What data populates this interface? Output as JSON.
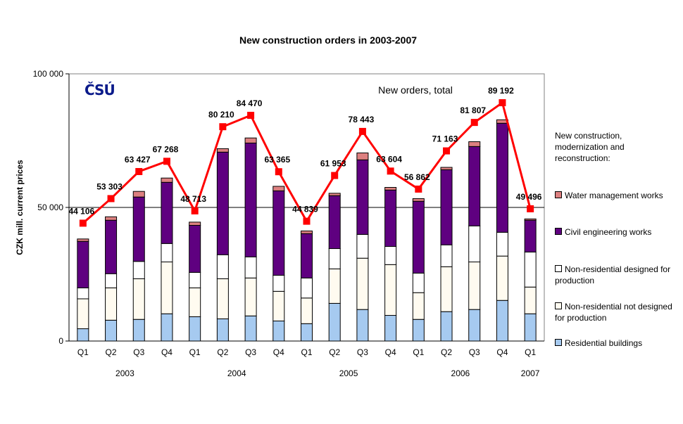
{
  "chart_data": {
    "type": "bar",
    "title": "New construction orders in 2003-2007",
    "ylabel": "CZK mill. current prices",
    "xlabel": "",
    "ylim": [
      0,
      100000
    ],
    "yticks": [
      "0",
      "50 000",
      "100 000"
    ],
    "ytick_values": [
      0,
      50000,
      100000
    ],
    "gridlines": [
      50000
    ],
    "categories": [
      "Q1",
      "Q2",
      "Q3",
      "Q4",
      "Q1",
      "Q2",
      "Q3",
      "Q4",
      "Q1",
      "Q2",
      "Q3",
      "Q4",
      "Q1",
      "Q2",
      "Q3",
      "Q4",
      "Q1"
    ],
    "years": [
      {
        "label": "2003",
        "from": 0,
        "to": 3
      },
      {
        "label": "2004",
        "from": 4,
        "to": 7
      },
      {
        "label": "2005",
        "from": 8,
        "to": 11
      },
      {
        "label": "2006",
        "from": 12,
        "to": 15
      },
      {
        "label": "2007",
        "from": 16,
        "to": 16
      }
    ],
    "legend_title": "New construction, modernization and reconstruction:",
    "legend_position": "right",
    "stacked": true,
    "series": [
      {
        "name": "Residential buildings",
        "color": "#a6caf0",
        "values": [
          4600,
          7800,
          8100,
          10200,
          9100,
          8300,
          9400,
          7500,
          6500,
          14100,
          11800,
          9600,
          8100,
          11000,
          11800,
          15200,
          10200
        ]
      },
      {
        "name": "Non-residential not designed for production",
        "color": "#fffbf0",
        "values": [
          11200,
          12100,
          15200,
          19400,
          10800,
          15000,
          14200,
          11100,
          9600,
          12900,
          19200,
          19000,
          10000,
          16800,
          17800,
          16600,
          10000
        ]
      },
      {
        "name": "Non-residential designed for production",
        "color": "#ffffff",
        "values": [
          4100,
          5300,
          6500,
          6900,
          5800,
          9000,
          7900,
          6000,
          7500,
          7600,
          8900,
          6800,
          7300,
          8200,
          13500,
          8900,
          13100
        ]
      },
      {
        "name": "Civil engineering works",
        "color": "#5f0080",
        "values": [
          17400,
          20000,
          24100,
          22900,
          17600,
          38400,
          42600,
          31600,
          16600,
          19800,
          27900,
          21100,
          26900,
          28100,
          29700,
          40800,
          11900
        ]
      },
      {
        "name": "Water management works",
        "color": "#dd8080",
        "values": [
          900,
          1300,
          2100,
          1600,
          1200,
          1300,
          1900,
          1700,
          1000,
          900,
          2600,
          1000,
          1000,
          900,
          1800,
          1300,
          500
        ]
      }
    ],
    "line": {
      "name": "New orders, total",
      "color": "#ff0000",
      "values": [
        44106,
        53303,
        63427,
        67268,
        48713,
        80210,
        84470,
        63365,
        44839,
        61953,
        78443,
        63604,
        56862,
        71163,
        81807,
        89192,
        49496
      ],
      "labels": [
        "44 106",
        "53 303",
        "63 427",
        "67 268",
        "48 713",
        "80 210",
        "84 470",
        "63 365",
        "44 839",
        "61 953",
        "78 443",
        "63 604",
        "56 862",
        "71 163",
        "81 807",
        "89 192",
        "49 496"
      ]
    },
    "logo_text": "ČSÚ"
  }
}
